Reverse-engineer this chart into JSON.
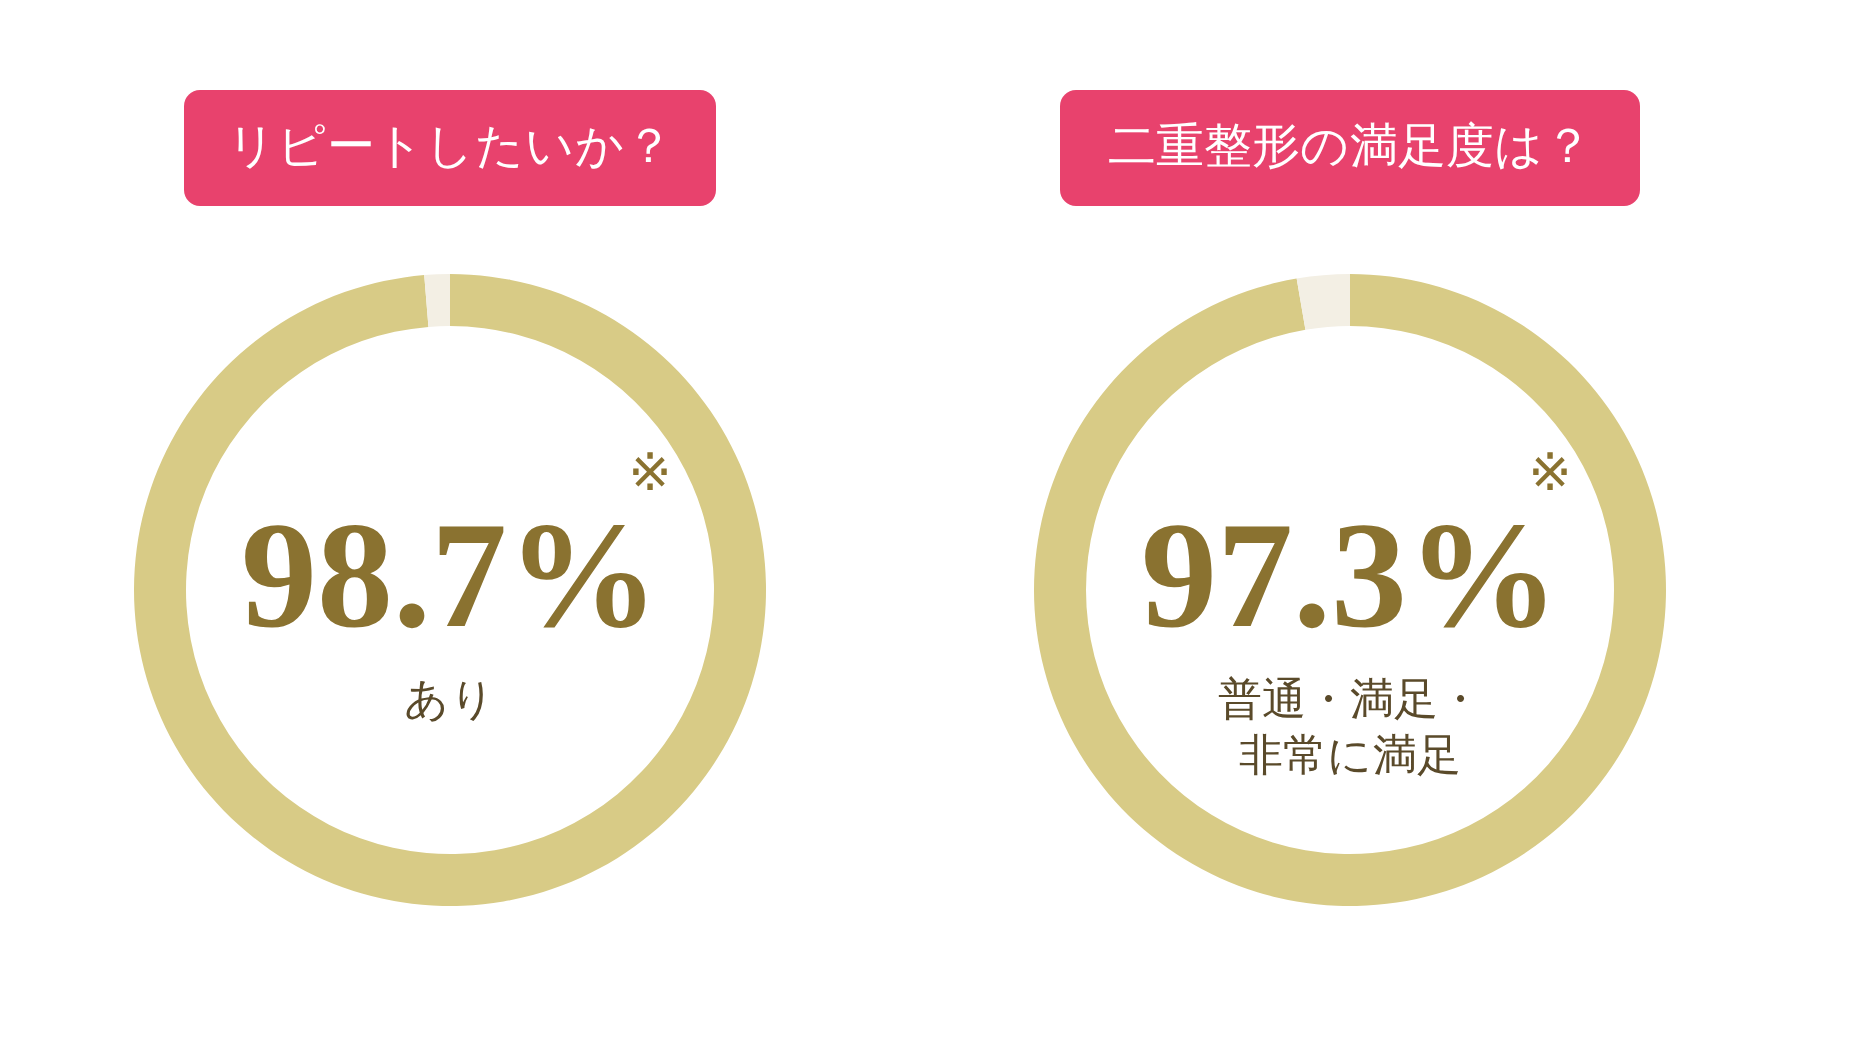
{
  "chart_data": [
    {
      "type": "donut",
      "title": "リピートしたいか？",
      "categories": [
        "あり",
        null
      ],
      "values": [
        98.7,
        1.3
      ],
      "colors": [
        "#d8cb86",
        "#f3efe4"
      ],
      "value_labels": [
        "98.7%",
        null
      ],
      "annotations": [
        "※"
      ]
    },
    {
      "type": "donut",
      "title": "二重整形の満足度は？",
      "categories": [
        "普通・満足・非常に満足",
        null
      ],
      "values": [
        97.3,
        2.7
      ],
      "colors": [
        "#d8cb86",
        "#f3efe4"
      ],
      "value_labels": [
        "97.3%",
        null
      ],
      "annotations": [
        "※"
      ]
    }
  ]
}
